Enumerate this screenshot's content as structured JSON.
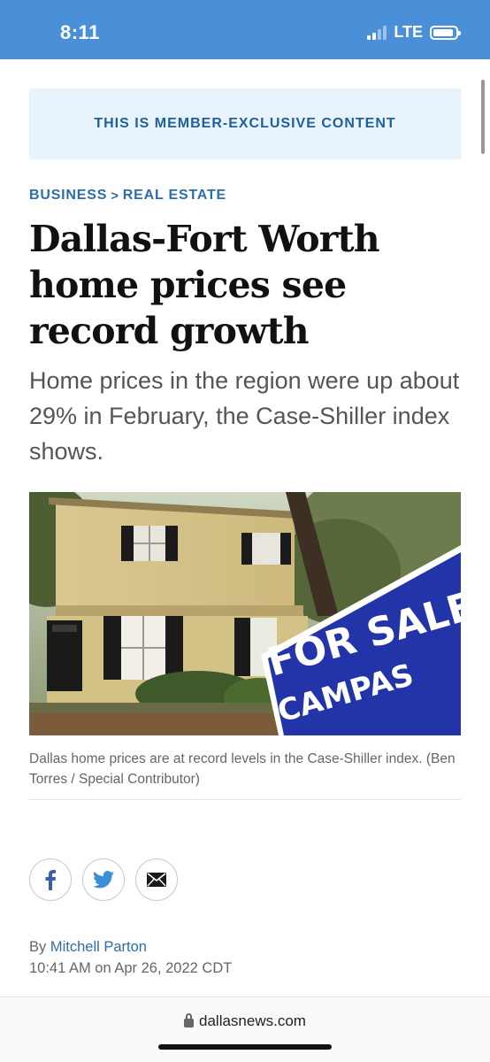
{
  "status_bar": {
    "time": "8:11",
    "network": "LTE"
  },
  "banner": {
    "text": "THIS IS MEMBER-EXCLUSIVE CONTENT"
  },
  "breadcrumb": {
    "section": "BUSINESS",
    "separator": ">",
    "subsection": "REAL ESTATE"
  },
  "article": {
    "headline": "Dallas-Fort Worth home prices see record growth",
    "subhead": "Home prices in the region were up about 29% in February, the Case-Shiller index shows.",
    "photo": {
      "sign_text": "FOR SALE",
      "sign_subtext": "CAMPAS"
    },
    "caption": "Dallas home prices are at record levels in the Case-Shiller index. (Ben Torres / Special Contributor)",
    "byline_prefix": "By ",
    "author": "Mitchell Parton",
    "timestamp": "10:41 AM on Apr 26, 2022 CDT"
  },
  "share": {
    "facebook_icon": "facebook-icon",
    "twitter_icon": "twitter-icon",
    "email_icon": "email-icon"
  },
  "browser": {
    "url": "dallasnews.com"
  },
  "colors": {
    "status_bar": "#4a90d9",
    "link": "#2d6ea8",
    "banner_bg": "#e9f3fc",
    "sign_blue": "#2333a8"
  }
}
